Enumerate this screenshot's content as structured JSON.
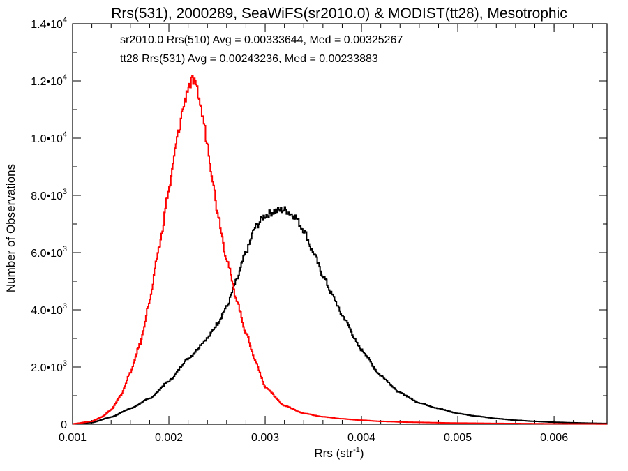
{
  "chart_data": {
    "type": "histogram",
    "title": "Rrs(531), 2000289, SeaWiFS(sr2010.0) & MODIST(tt28), Mesotrophic",
    "xlabel": {
      "base": "Rrs (str",
      "sup": "-1",
      "end": ")"
    },
    "ylabel": "Number of Observations",
    "xlim": [
      0.001,
      0.00655
    ],
    "ylim": [
      0,
      14000
    ],
    "x_ticks": [
      {
        "value": 0.001,
        "label": "0.001"
      },
      {
        "value": 0.002,
        "label": "0.002"
      },
      {
        "value": 0.003,
        "label": "0.003"
      },
      {
        "value": 0.004,
        "label": "0.004"
      },
      {
        "value": 0.005,
        "label": "0.005"
      },
      {
        "value": 0.006,
        "label": "0.006"
      }
    ],
    "y_ticks": [
      {
        "value": 0,
        "base": "0",
        "sup": ""
      },
      {
        "value": 2000,
        "base": "2.0•10",
        "sup": "3"
      },
      {
        "value": 4000,
        "base": "4.0•10",
        "sup": "3"
      },
      {
        "value": 6000,
        "base": "6.0•10",
        "sup": "3"
      },
      {
        "value": 8000,
        "base": "8.0•10",
        "sup": "3"
      },
      {
        "value": 10000,
        "base": "1.0•10",
        "sup": "4"
      },
      {
        "value": 12000,
        "base": "1.2•10",
        "sup": "4"
      },
      {
        "value": 14000,
        "base": "1.4•10",
        "sup": "4"
      }
    ],
    "legend": [
      {
        "text": "sr2010.0 Rrs(510) Avg = 0.00333644, Med = 0.00325267",
        "color": "#000000"
      },
      {
        "text": "tt28 Rrs(531) Avg = 0.00243236, Med = 0.00233883",
        "color": "#ff0000"
      }
    ],
    "series": [
      {
        "color": "#000000",
        "x": [
          0.001,
          0.0012,
          0.0014,
          0.0016,
          0.0018,
          0.002,
          0.0022,
          0.0024,
          0.0025,
          0.0026,
          0.0027,
          0.0028,
          0.0029,
          0.003,
          0.0031,
          0.0032,
          0.0033,
          0.0034,
          0.0035,
          0.0036,
          0.0037,
          0.0038,
          0.004,
          0.0042,
          0.0044,
          0.0046,
          0.0048,
          0.005,
          0.0052,
          0.0054,
          0.0056,
          0.0058,
          0.006,
          0.0062,
          0.0064,
          0.00655
        ],
        "y": [
          10,
          60,
          250,
          550,
          900,
          1500,
          2300,
          3000,
          3500,
          4100,
          5000,
          6000,
          6900,
          7300,
          7450,
          7500,
          7300,
          6800,
          6000,
          5200,
          4500,
          3800,
          2600,
          1700,
          1100,
          750,
          550,
          380,
          280,
          200,
          140,
          100,
          70,
          50,
          35,
          25
        ]
      },
      {
        "color": "#ff0000",
        "x": [
          0.001,
          0.0012,
          0.0013,
          0.0014,
          0.0015,
          0.0016,
          0.0017,
          0.0018,
          0.0019,
          0.002,
          0.0021,
          0.00215,
          0.0022,
          0.00225,
          0.0023,
          0.00235,
          0.0024,
          0.00245,
          0.0025,
          0.0026,
          0.0027,
          0.0028,
          0.0029,
          0.003,
          0.0032,
          0.0034,
          0.0036,
          0.0038,
          0.004,
          0.0042,
          0.0045,
          0.005,
          0.0055,
          0.006,
          0.00655
        ],
        "y": [
          10,
          100,
          250,
          500,
          1000,
          1800,
          2800,
          4300,
          6200,
          8200,
          10200,
          11100,
          11800,
          12000,
          11600,
          10800,
          9800,
          8700,
          7500,
          5800,
          4400,
          3200,
          2200,
          1300,
          650,
          380,
          260,
          190,
          140,
          100,
          70,
          40,
          25,
          15,
          10
        ]
      }
    ]
  }
}
